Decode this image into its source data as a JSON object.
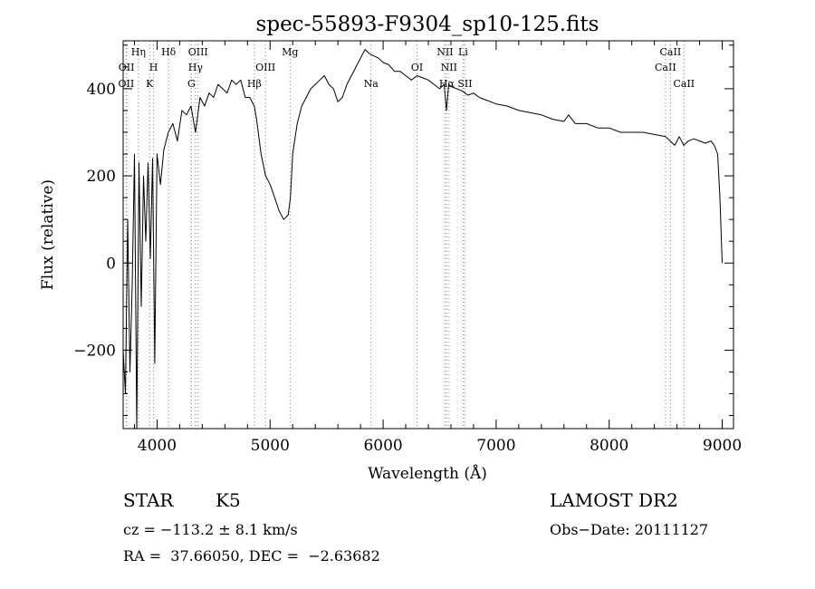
{
  "chart_data": {
    "type": "line",
    "title": "spec-55893-F9304_sp10-125.fits",
    "xlabel": "Wavelength (Å)",
    "ylabel": "Flux (relative)",
    "xlim": [
      3700,
      9100
    ],
    "ylim": [
      -380,
      510
    ],
    "x_ticks": [
      4000,
      5000,
      6000,
      7000,
      8000,
      9000
    ],
    "y_ticks": [
      -200,
      0,
      200,
      400
    ],
    "grid": false,
    "line_color": "#000000",
    "marker_color": "#808080",
    "series": [
      {
        "x": [
          3700,
          3720,
          3740,
          3760,
          3780,
          3800,
          3820,
          3840,
          3860,
          3880,
          3900,
          3920,
          3940,
          3960,
          3980,
          4000,
          4030,
          4060,
          4100,
          4140,
          4180,
          4220,
          4260,
          4300,
          4340,
          4380,
          4420,
          4460,
          4500,
          4540,
          4580,
          4620,
          4660,
          4700,
          4740,
          4780,
          4820,
          4860,
          4880,
          4920,
          4960,
          5000,
          5040,
          5080,
          5120,
          5160,
          5180,
          5200,
          5240,
          5280,
          5320,
          5360,
          5400,
          5440,
          5480,
          5520,
          5560,
          5600,
          5640,
          5680,
          5720,
          5760,
          5800,
          5840,
          5880,
          5920,
          5960,
          6000,
          6050,
          6100,
          6150,
          6200,
          6250,
          6300,
          6350,
          6400,
          6450,
          6500,
          6540,
          6560,
          6580,
          6600,
          6650,
          6700,
          6750,
          6800,
          6850,
          6900,
          7000,
          7100,
          7200,
          7300,
          7400,
          7500,
          7600,
          7640,
          7700,
          7800,
          7900,
          8000,
          8100,
          8200,
          8300,
          8400,
          8500,
          8540,
          8580,
          8620,
          8660,
          8700,
          8750,
          8800,
          8850,
          8900,
          8930,
          8960,
          8980,
          9000
        ],
        "y": [
          -200,
          -300,
          100,
          -250,
          -50,
          250,
          -380,
          230,
          -100,
          200,
          50,
          230,
          10,
          240,
          -230,
          250,
          180,
          260,
          300,
          320,
          280,
          350,
          340,
          360,
          300,
          380,
          360,
          390,
          380,
          410,
          400,
          390,
          420,
          410,
          420,
          380,
          380,
          360,
          330,
          250,
          200,
          180,
          150,
          120,
          100,
          110,
          150,
          250,
          320,
          360,
          380,
          400,
          410,
          420,
          430,
          410,
          400,
          370,
          380,
          410,
          430,
          450,
          470,
          490,
          480,
          475,
          470,
          460,
          455,
          440,
          440,
          430,
          420,
          430,
          425,
          420,
          410,
          400,
          410,
          350,
          410,
          405,
          400,
          395,
          385,
          390,
          380,
          375,
          365,
          360,
          350,
          345,
          340,
          330,
          325,
          340,
          320,
          320,
          310,
          310,
          300,
          300,
          300,
          295,
          290,
          280,
          270,
          290,
          270,
          280,
          285,
          280,
          275,
          280,
          270,
          250,
          150,
          0
        ]
      }
    ],
    "line_markers": [
      {
        "x": 3727,
        "label": "OII",
        "row": 3
      },
      {
        "x": 3729,
        "label": "OII",
        "row": 2
      },
      {
        "x": 3835,
        "label": "Hη",
        "row": 1
      },
      {
        "x": 3934,
        "label": "K",
        "row": 3
      },
      {
        "x": 3969,
        "label": "H",
        "row": 2
      },
      {
        "x": 4102,
        "label": "Hδ",
        "row": 1
      },
      {
        "x": 4304,
        "label": "G",
        "row": 3
      },
      {
        "x": 4340,
        "label": "Hγ",
        "row": 2
      },
      {
        "x": 4363,
        "label": "OIII",
        "row": 1
      },
      {
        "x": 4861,
        "label": "Hβ",
        "row": 3
      },
      {
        "x": 4959,
        "label": "OIII",
        "row": 2
      },
      {
        "x": 5176,
        "label": "Mg",
        "row": 1
      },
      {
        "x": 5893,
        "label": "Na",
        "row": 3
      },
      {
        "x": 6300,
        "label": "OI",
        "row": 2
      },
      {
        "x": 6548,
        "label": "NII",
        "row": 1
      },
      {
        "x": 6563,
        "label": "Hα",
        "row": 3
      },
      {
        "x": 6583,
        "label": "NII",
        "row": 2
      },
      {
        "x": 6708,
        "label": "Li",
        "row": 1
      },
      {
        "x": 6724,
        "label": "SII",
        "row": 3
      },
      {
        "x": 8498,
        "label": "CaII",
        "row": 2
      },
      {
        "x": 8542,
        "label": "CaII",
        "row": 1
      },
      {
        "x": 8662,
        "label": "CaII",
        "row": 3
      }
    ]
  },
  "info": {
    "object_class": "STAR",
    "subclass": "K5",
    "survey": "LAMOST DR2",
    "redshift_text": "cz = −113.2 ± 8.1 km/s",
    "obs_date_text": "Obs−Date: 20111127",
    "coords_text": "RA =  37.66050, DEC =  −2.63682"
  }
}
